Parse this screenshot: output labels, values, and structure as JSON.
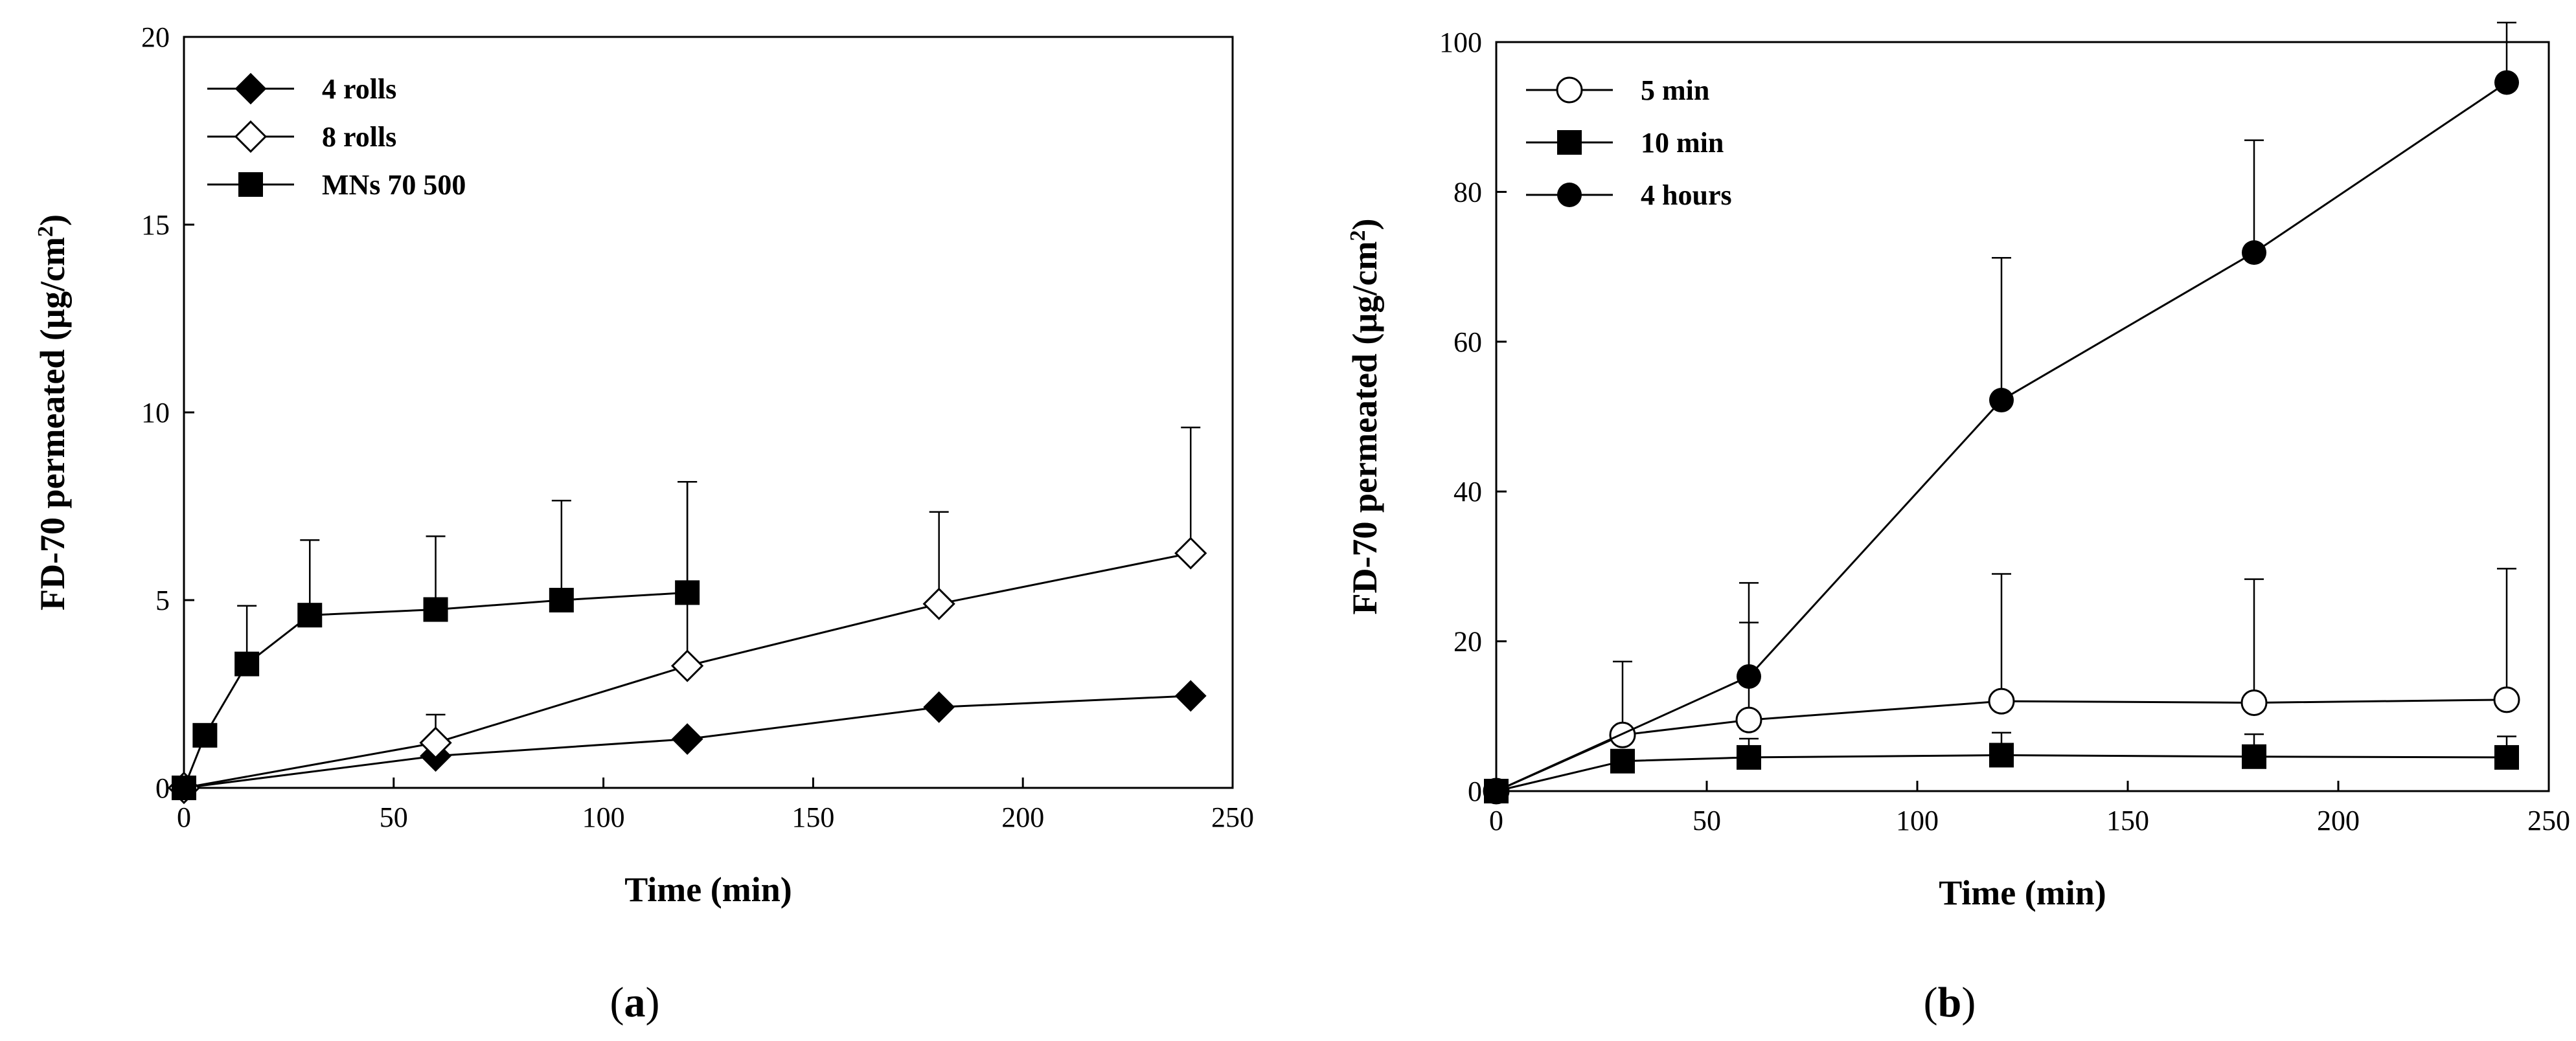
{
  "figure_captions": [
    {
      "open": "(",
      "letter": "a",
      "close": ")"
    },
    {
      "open": "(",
      "letter": "b",
      "close": ")"
    }
  ],
  "chart_data": [
    {
      "type": "line",
      "panel": "a",
      "title": "",
      "xlabel": "Time (min)",
      "ylabel_main": "FD-70 permeated (µg/cm",
      "ylabel_sup": "2",
      "ylabel_close": ")",
      "xlim": [
        0,
        250
      ],
      "ylim": [
        0,
        20
      ],
      "xticks": [
        0,
        50,
        100,
        150,
        200,
        250
      ],
      "yticks": [
        0,
        5,
        10,
        15,
        20
      ],
      "legend_position": "top-left",
      "grid": false,
      "series": [
        {
          "name": "4 rolls",
          "marker": "diamond-filled",
          "x": [
            0,
            60,
            120,
            180,
            240
          ],
          "y": [
            0,
            0.85,
            1.3,
            2.15,
            2.45
          ],
          "err": [
            0,
            0,
            0,
            0,
            0
          ]
        },
        {
          "name": "8 rolls",
          "marker": "diamond-open",
          "x": [
            0,
            60,
            120,
            180,
            240
          ],
          "y": [
            0,
            1.2,
            3.25,
            4.9,
            6.25
          ],
          "err": [
            0,
            0.75,
            4.9,
            2.45,
            3.35
          ]
        },
        {
          "name": "MNs 70 500",
          "marker": "square-filled",
          "x": [
            0,
            5,
            15,
            30,
            60,
            90,
            120
          ],
          "y": [
            0,
            1.4,
            3.3,
            4.6,
            4.75,
            5.0,
            5.2
          ],
          "err": [
            0,
            0,
            1.55,
            2.0,
            1.95,
            2.65,
            2.95
          ]
        }
      ]
    },
    {
      "type": "line",
      "panel": "b",
      "title": "",
      "xlabel": "Time (min)",
      "ylabel_main": "FD-70 permeated (µg/cm",
      "ylabel_sup": "2",
      "ylabel_close": ")",
      "xlim": [
        0,
        250
      ],
      "ylim": [
        0,
        100
      ],
      "xticks": [
        0,
        50,
        100,
        150,
        200,
        250
      ],
      "yticks": [
        0,
        20,
        40,
        60,
        80,
        100
      ],
      "legend_position": "top-left",
      "grid": false,
      "series": [
        {
          "name": "5 min",
          "marker": "circle-open",
          "x": [
            0,
            30,
            60,
            120,
            180,
            240
          ],
          "y": [
            0,
            7.5,
            9.5,
            12.0,
            11.8,
            12.2
          ],
          "err": [
            0,
            9.8,
            13.0,
            17.0,
            16.5,
            17.5
          ]
        },
        {
          "name": "10 min",
          "marker": "square-filled",
          "x": [
            0,
            30,
            60,
            120,
            180,
            240
          ],
          "y": [
            0,
            4.0,
            4.5,
            4.8,
            4.6,
            4.5
          ],
          "err": [
            0,
            1.5,
            2.5,
            3.0,
            3.0,
            2.8
          ]
        },
        {
          "name": "4 hours",
          "marker": "circle-filled",
          "x": [
            0,
            60,
            120,
            180,
            240
          ],
          "y": [
            0,
            15.3,
            52.2,
            71.9,
            94.6
          ],
          "err": [
            0,
            12.5,
            19.0,
            15.0,
            8.0
          ]
        }
      ]
    }
  ]
}
